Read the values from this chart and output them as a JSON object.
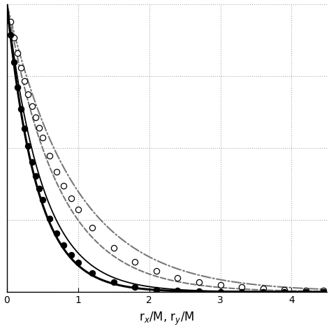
{
  "title": "",
  "xlabel": "r$_x$/M, r$_y$/M",
  "ylabel": "",
  "xlim": [
    0,
    4.5
  ],
  "ylim": [
    0,
    1.0
  ],
  "x_ticks": [
    0,
    1,
    2,
    3,
    4
  ],
  "grid_color": "#aaaaaa",
  "curve_color_solid": "#000000",
  "curve_color_dashed": "#777777",
  "dot_color_filled": "#000000",
  "dot_color_open": "#ffffff",
  "dot_edgecolor": "#000000",
  "dot_size": 35,
  "figsize": [
    4.74,
    4.74
  ],
  "dpi": 100,
  "L_L1": 0.42,
  "L_L2": 0.5,
  "L_T1": 0.72,
  "L_T2": 0.95,
  "L_data_L": 0.44,
  "L_data_T": 0.8,
  "x_data": [
    0.05,
    0.1,
    0.15,
    0.2,
    0.25,
    0.3,
    0.35,
    0.4,
    0.45,
    0.5,
    0.6,
    0.7,
    0.8,
    0.9,
    1.0,
    1.2,
    1.5,
    1.8,
    2.1,
    2.4,
    2.7,
    3.0,
    3.3,
    3.6,
    3.9,
    4.2,
    4.45
  ]
}
